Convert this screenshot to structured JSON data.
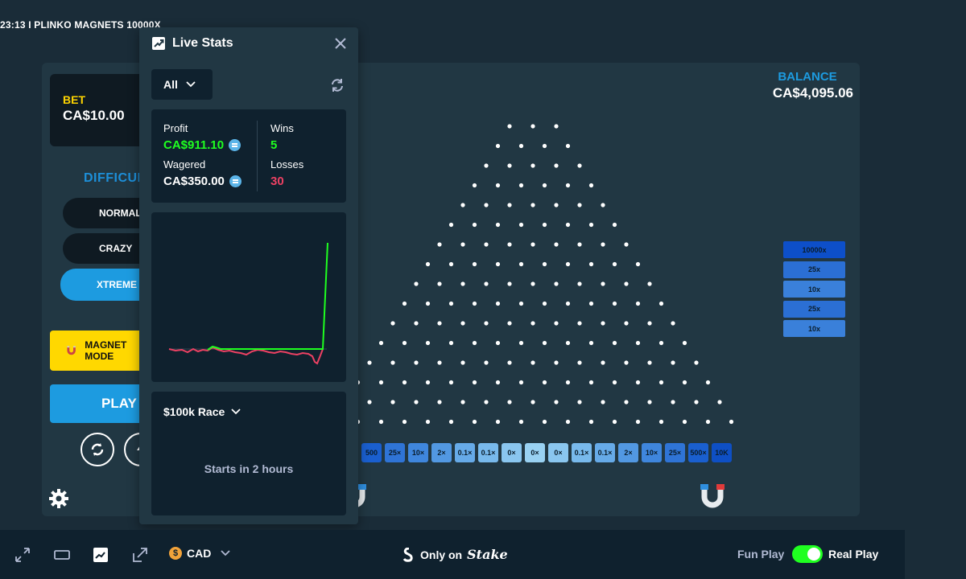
{
  "header": {
    "title": "23:13 I PLINKO MAGNETS 10000X"
  },
  "game": {
    "bet_label": "BET",
    "bet_value": "CA$10.00",
    "difficulty_label": "DIFFICULTY",
    "difficulty_options": [
      "NORMAL",
      "CRAZY",
      "XTREME"
    ],
    "difficulty_selected": "XTREME",
    "magnet_label": "MAGNET MODE",
    "play_label": "PLAY",
    "balance_label": "BALANCE",
    "balance_value": "CA$4,095.06",
    "buckets": [
      "500",
      "25×",
      "10×",
      "2×",
      "0.1×",
      "0.1×",
      "0×",
      "0×",
      "0×",
      "0.1×",
      "0.1×",
      "2×",
      "10×",
      "25×",
      "500×",
      "10K"
    ],
    "bucket_colors": [
      "#1a5fcf",
      "#2f74d6",
      "#3f86dd",
      "#5298e2",
      "#66aae8",
      "#78b9ec",
      "#8ac6ef",
      "#99d1f2",
      "#8ac6ef",
      "#78b9ec",
      "#66aae8",
      "#5298e2",
      "#3f86dd",
      "#2f74d6",
      "#1a5fcf",
      "#0e4fc4"
    ],
    "side_multipliers": [
      "10000x",
      "25x",
      "10x",
      "25x",
      "10x"
    ],
    "side_colors": [
      "#0d4fc9",
      "#2b6fd4",
      "#3a80da",
      "#2b6fd4",
      "#3a80da"
    ]
  },
  "live_stats": {
    "title": "Live Stats",
    "filter": "All",
    "profit_label": "Profit",
    "profit_value": "CA$911.10",
    "wagered_label": "Wagered",
    "wagered_value": "CA$350.00",
    "wins_label": "Wins",
    "wins_value": "5",
    "losses_label": "Losses",
    "losses_value": "30",
    "race_title": "$100k Race",
    "race_status": "Starts in 2 hours",
    "colors": {
      "profit": "#1fff20",
      "loss": "#ed4163"
    }
  },
  "footer": {
    "currency": "CAD",
    "currency_symbol": "$",
    "brand_text": "Only on",
    "brand_name": "Stake",
    "fun_play": "Fun Play",
    "real_play": "Real Play"
  }
}
